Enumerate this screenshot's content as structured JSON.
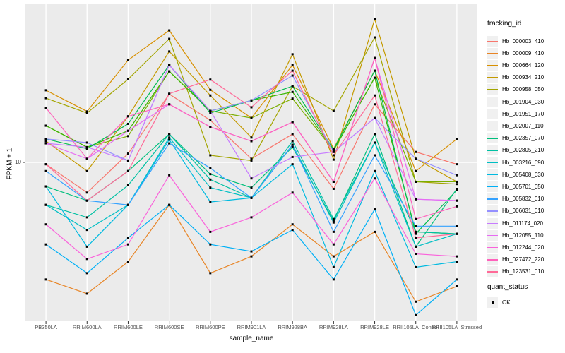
{
  "figure": {
    "ylabel": "FPKM + 1",
    "xlabel": "sample_name",
    "y_tick_label": "10",
    "legend_title": "tracking_id",
    "quant_legend_title": "quant_status",
    "quant_legend_item": "OK",
    "panel_background": "#EBEBEB",
    "gridline_color": "#FFFFFF",
    "tick_color": "#333333",
    "axis_text_color": "#4D4D4D",
    "point_color": "#000000"
  },
  "chart_data": {
    "type": "line",
    "title": "",
    "xlabel": "sample_name",
    "ylabel": "FPKM + 1",
    "y_scale": "log10",
    "y_ticks": [
      10
    ],
    "ylim": [
      1.78,
      56
    ],
    "grid": true,
    "legend_position": "right",
    "legend_title": "tracking_id",
    "quant_status_legend": {
      "title": "quant_status",
      "items": [
        "OK"
      ],
      "marker": "black-square"
    },
    "point_marker": "black-square",
    "x_categories": [
      "PB350LA",
      "RRIM600LA",
      "RRIM600LE",
      "RRIM600SE",
      "RRIM600PE",
      "RRIM901LA",
      "RRIM928BA",
      "RRIM928LA",
      "RRIM928LE",
      "RRII105LA_Control",
      "RRII105LA_Stressed"
    ],
    "series": [
      {
        "name": "Hb_000003_410",
        "color": "#F8766D",
        "values": [
          9.8,
          7.2,
          11.0,
          21.0,
          15.8,
          10.4,
          13.6,
          7.5,
          18.8,
          11.2,
          9.8
        ]
      },
      {
        "name": "Hb_000009_410",
        "color": "#E88526",
        "values": [
          2.8,
          2.4,
          3.4,
          6.3,
          3.0,
          3.6,
          5.1,
          3.6,
          4.7,
          2.2,
          2.6
        ]
      },
      {
        "name": "Hb_000664_120",
        "color": "#D89000",
        "values": [
          21.9,
          17.4,
          30.4,
          42.0,
          22.0,
          16.2,
          28.8,
          11.6,
          27.1,
          9.1,
          12.9
        ]
      },
      {
        "name": "Hb_000934_210",
        "color": "#C49A00",
        "values": [
          12.6,
          9.1,
          16.5,
          33.4,
          20.7,
          13.1,
          32.4,
          10.3,
          47.5,
          10.4,
          8.1
        ]
      },
      {
        "name": "Hb_000958_050",
        "color": "#A3A500",
        "values": [
          20.1,
          17.1,
          24.7,
          38.3,
          10.8,
          10.2,
          22.9,
          17.5,
          38.9,
          8.1,
          7.9
        ]
      },
      {
        "name": "Hb_001904_030",
        "color": "#7CAE00",
        "values": [
          14.9,
          11.8,
          13.3,
          26.9,
          17.5,
          16.2,
          20.0,
          11.4,
          25.1,
          8.1,
          8.1
        ]
      },
      {
        "name": "Hb_001951_170",
        "color": "#39B600",
        "values": [
          14.9,
          11.8,
          14.1,
          26.9,
          17.5,
          19.6,
          21.5,
          11.4,
          25.1,
          4.7,
          4.6
        ]
      },
      {
        "name": "Hb_002007_110",
        "color": "#00BB4E",
        "values": [
          12.9,
          11.6,
          15.2,
          28.8,
          17.1,
          19.6,
          22.9,
          11.5,
          27.1,
          4.6,
          7.4
        ]
      },
      {
        "name": "Hb_002357_070",
        "color": "#00BF7D",
        "values": [
          7.7,
          6.6,
          9.1,
          13.6,
          8.8,
          7.6,
          11.8,
          5.3,
          13.6,
          4.0,
          7.5
        ]
      },
      {
        "name": "Hb_002805_210",
        "color": "#00C1A3",
        "values": [
          6.3,
          5.5,
          7.8,
          13.6,
          8.3,
          6.8,
          12.6,
          5.4,
          12.4,
          4.7,
          4.6
        ]
      },
      {
        "name": "Hb_003216_090",
        "color": "#00BFC4",
        "values": [
          6.3,
          4.8,
          6.3,
          13.1,
          7.6,
          6.8,
          12.1,
          5.2,
          12.4,
          4.0,
          4.6
        ]
      },
      {
        "name": "Hb_005408_030",
        "color": "#00BAE0",
        "values": [
          7.7,
          4.0,
          6.3,
          12.8,
          6.5,
          6.8,
          9.8,
          3.2,
          9.1,
          3.2,
          3.4
        ]
      },
      {
        "name": "Hb_005701_050",
        "color": "#00B0F6",
        "values": [
          4.1,
          3.0,
          4.4,
          6.3,
          4.1,
          3.8,
          4.8,
          2.8,
          6.0,
          1.9,
          2.8
        ]
      },
      {
        "name": "Hb_005832_010",
        "color": "#35A2FF",
        "values": [
          9.1,
          6.6,
          6.3,
          12.3,
          9.4,
          6.8,
          12.1,
          4.7,
          10.8,
          5.0,
          5.0
        ]
      },
      {
        "name": "Hb_006031_010",
        "color": "#9590FF",
        "values": [
          12.9,
          12.4,
          10.2,
          28.8,
          17.5,
          19.6,
          25.7,
          11.2,
          16.2,
          10.4,
          8.7
        ]
      },
      {
        "name": "Hb_011174_020",
        "color": "#C77CFF",
        "values": [
          12.3,
          11.8,
          10.2,
          28.8,
          17.5,
          8.4,
          10.6,
          11.2,
          16.2,
          6.7,
          6.6
        ]
      },
      {
        "name": "Hb_012055_110",
        "color": "#E76BF3",
        "values": [
          12.3,
          10.4,
          14.1,
          18.8,
          14.7,
          12.6,
          15.5,
          8.1,
          31.1,
          6.7,
          6.6
        ]
      },
      {
        "name": "Hb_012244_020",
        "color": "#FA62DB",
        "values": [
          5.1,
          3.5,
          4.1,
          8.7,
          4.7,
          5.5,
          7.2,
          4.1,
          8.4,
          3.7,
          3.6
        ]
      },
      {
        "name": "Hb_027472_220",
        "color": "#FF62BC",
        "values": [
          18.1,
          10.4,
          16.5,
          18.8,
          14.7,
          12.6,
          15.5,
          8.1,
          31.1,
          5.4,
          6.2
        ]
      },
      {
        "name": "Hb_123531_010",
        "color": "#FF6A98",
        "values": [
          9.8,
          6.6,
          9.1,
          21.1,
          24.6,
          18.2,
          27.1,
          10.8,
          20.7,
          4.4,
          4.6
        ]
      }
    ]
  }
}
